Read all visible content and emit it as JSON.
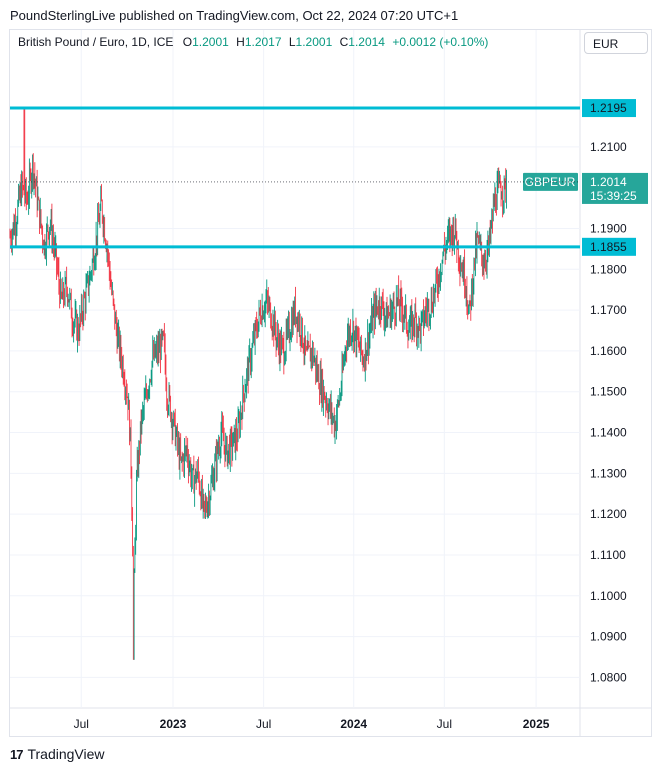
{
  "header": {
    "publisher_line": "PoundSterlingLive published on TradingView.com, Oct 22, 2024 07:20 UTC+1"
  },
  "legend": {
    "symbol": "British Pound / Euro, 1D, ICE",
    "open_label": "O",
    "open": "1.2001",
    "high_label": "H",
    "high": "1.2017",
    "low_label": "L",
    "low": "1.2001",
    "close_label": "C",
    "close": "1.2014",
    "change": "+0.0012 (+0.10%)"
  },
  "currency_button": {
    "label": "EUR"
  },
  "footer": {
    "brand": "TradingView",
    "logo_glyph": "17"
  },
  "colors": {
    "up": "#089981",
    "down": "#f23645",
    "level_line": "#00bcd4",
    "price_tag": "#26a69a",
    "grid": "#f0f3fa",
    "axis_text": "#131722"
  },
  "chart_data": {
    "type": "candlestick",
    "symbol": "GBPEUR",
    "interval": "1D",
    "ylim": [
      1.0725,
      1.2325
    ],
    "y_ticks": [
      "1.0800",
      "1.0900",
      "1.1000",
      "1.1100",
      "1.1200",
      "1.1300",
      "1.1400",
      "1.1500",
      "1.1600",
      "1.1700",
      "1.1800",
      "1.1900",
      "1.2100"
    ],
    "x_ticks": [
      {
        "label": "Jul",
        "t": 0.125
      },
      {
        "label": "2023",
        "t": 0.286
      },
      {
        "label": "Jul",
        "t": 0.445
      },
      {
        "label": "2024",
        "t": 0.603
      },
      {
        "label": "Jul",
        "t": 0.762
      },
      {
        "label": "2025",
        "t": 0.923
      }
    ],
    "horizontal_levels": [
      {
        "value": 1.2195,
        "label": "1.2195"
      },
      {
        "value": 1.1855,
        "label": "1.1855"
      }
    ],
    "last_price": {
      "value": 1.2014,
      "label": "1.2014",
      "symbol_tag": "GBPEUR",
      "countdown": "15:39:25"
    },
    "price_path": [
      [
        0.0,
        1.188
      ],
      [
        0.01,
        1.192
      ],
      [
        0.02,
        1.2
      ],
      [
        0.03,
        1.197
      ],
      [
        0.04,
        1.206
      ],
      [
        0.05,
        1.195
      ],
      [
        0.06,
        1.186
      ],
      [
        0.07,
        1.192
      ],
      [
        0.08,
        1.183
      ],
      [
        0.09,
        1.172
      ],
      [
        0.1,
        1.176
      ],
      [
        0.11,
        1.168
      ],
      [
        0.12,
        1.165
      ],
      [
        0.13,
        1.172
      ],
      [
        0.14,
        1.178
      ],
      [
        0.15,
        1.186
      ],
      [
        0.16,
        1.196
      ],
      [
        0.17,
        1.186
      ],
      [
        0.18,
        1.172
      ],
      [
        0.19,
        1.162
      ],
      [
        0.2,
        1.155
      ],
      [
        0.207,
        1.148
      ],
      [
        0.212,
        1.135
      ],
      [
        0.217,
        1.098
      ],
      [
        0.222,
        1.128
      ],
      [
        0.23,
        1.142
      ],
      [
        0.24,
        1.15
      ],
      [
        0.25,
        1.158
      ],
      [
        0.26,
        1.16
      ],
      [
        0.27,
        1.162
      ],
      [
        0.275,
        1.15
      ],
      [
        0.28,
        1.147
      ],
      [
        0.29,
        1.14
      ],
      [
        0.3,
        1.132
      ],
      [
        0.31,
        1.136
      ],
      [
        0.32,
        1.128
      ],
      [
        0.33,
        1.13
      ],
      [
        0.34,
        1.12
      ],
      [
        0.35,
        1.125
      ],
      [
        0.36,
        1.132
      ],
      [
        0.37,
        1.14
      ],
      [
        0.38,
        1.135
      ],
      [
        0.39,
        1.137
      ],
      [
        0.4,
        1.14
      ],
      [
        0.41,
        1.15
      ],
      [
        0.42,
        1.157
      ],
      [
        0.43,
        1.164
      ],
      [
        0.44,
        1.17
      ],
      [
        0.45,
        1.172
      ],
      [
        0.46,
        1.168
      ],
      [
        0.47,
        1.162
      ],
      [
        0.48,
        1.16
      ],
      [
        0.49,
        1.165
      ],
      [
        0.5,
        1.17
      ],
      [
        0.51,
        1.166
      ],
      [
        0.52,
        1.158
      ],
      [
        0.53,
        1.16
      ],
      [
        0.54,
        1.154
      ],
      [
        0.55,
        1.15
      ],
      [
        0.56,
        1.146
      ],
      [
        0.57,
        1.142
      ],
      [
        0.58,
        1.15
      ],
      [
        0.59,
        1.163
      ],
      [
        0.6,
        1.166
      ],
      [
        0.61,
        1.162
      ],
      [
        0.62,
        1.158
      ],
      [
        0.63,
        1.164
      ],
      [
        0.64,
        1.17
      ],
      [
        0.65,
        1.172
      ],
      [
        0.66,
        1.168
      ],
      [
        0.67,
        1.17
      ],
      [
        0.68,
        1.172
      ],
      [
        0.69,
        1.17
      ],
      [
        0.7,
        1.165
      ],
      [
        0.71,
        1.168
      ],
      [
        0.72,
        1.165
      ],
      [
        0.73,
        1.17
      ],
      [
        0.74,
        1.172
      ],
      [
        0.75,
        1.177
      ],
      [
        0.76,
        1.184
      ],
      [
        0.77,
        1.188
      ],
      [
        0.78,
        1.19
      ],
      [
        0.79,
        1.182
      ],
      [
        0.8,
        1.177
      ],
      [
        0.805,
        1.168
      ],
      [
        0.81,
        1.175
      ],
      [
        0.815,
        1.182
      ],
      [
        0.82,
        1.187
      ],
      [
        0.83,
        1.182
      ],
      [
        0.84,
        1.185
      ],
      [
        0.85,
        1.197
      ],
      [
        0.86,
        1.2
      ],
      [
        0.867,
        1.199
      ],
      [
        0.871,
        1.2014
      ]
    ],
    "price_low_spike": {
      "t": 0.217,
      "low": 1.0843
    },
    "price_high_spike": {
      "t": 0.025,
      "high": 1.2193
    }
  }
}
